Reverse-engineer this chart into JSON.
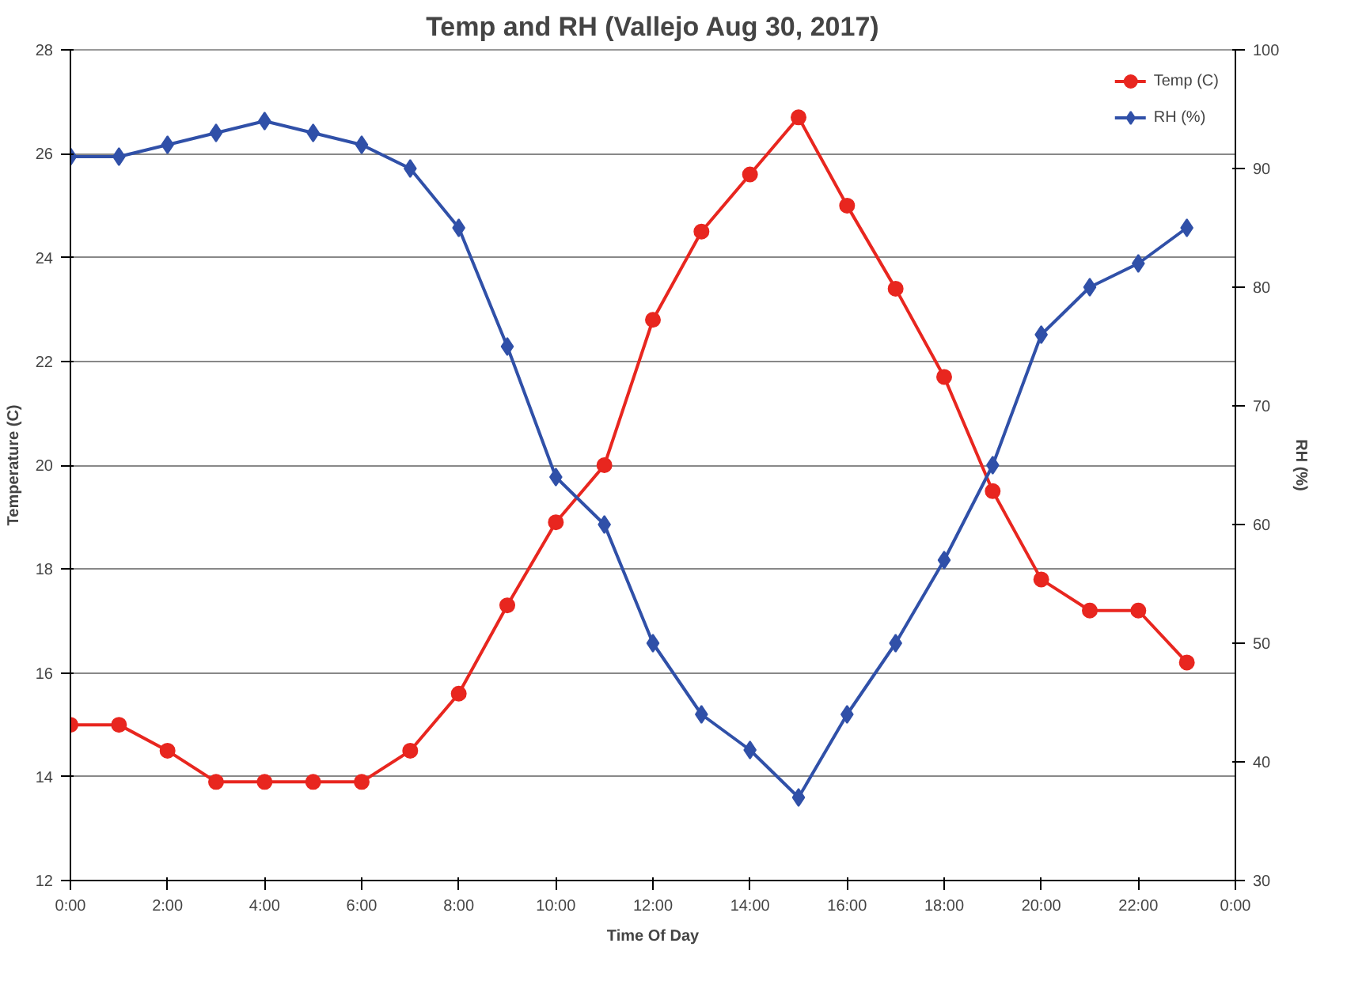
{
  "chart_data": {
    "type": "line",
    "title": "Temp and RH (Vallejo Aug 30, 2017)",
    "xlabel": "Time Of Day",
    "ylabel": "Temperature (C)",
    "y2label": "RH (%)",
    "x": [
      0,
      1,
      2,
      3,
      4,
      5,
      6,
      7,
      8,
      9,
      10,
      11,
      12,
      13,
      14,
      15,
      16,
      17,
      18,
      19,
      20,
      21,
      22,
      23
    ],
    "series": [
      {
        "name": "Temp (C)",
        "color": "#e8261f",
        "marker": "circle",
        "values": [
          15.0,
          15.0,
          14.5,
          13.9,
          13.9,
          13.9,
          13.9,
          14.5,
          15.6,
          17.3,
          18.9,
          20.0,
          22.8,
          24.5,
          25.6,
          26.7,
          25.0,
          23.4,
          21.7,
          19.5,
          17.8,
          17.2,
          17.2,
          16.2
        ]
      },
      {
        "name": "RH (%)",
        "color": "#3050a8",
        "marker": "diamond",
        "axis": "y2",
        "values": [
          91,
          91,
          92,
          93,
          94,
          93,
          92,
          90,
          85,
          75,
          64,
          60,
          50,
          44,
          41,
          37,
          44,
          50,
          57,
          65,
          76,
          80,
          82,
          85
        ]
      }
    ],
    "xlim": [
      0,
      24
    ],
    "xticks": [
      {
        "value": 0,
        "label": "0:00"
      },
      {
        "value": 2,
        "label": "2:00"
      },
      {
        "value": 4,
        "label": "4:00"
      },
      {
        "value": 6,
        "label": "6:00"
      },
      {
        "value": 8,
        "label": "8:00"
      },
      {
        "value": 10,
        "label": "10:00"
      },
      {
        "value": 12,
        "label": "12:00"
      },
      {
        "value": 14,
        "label": "14:00"
      },
      {
        "value": 16,
        "label": "16:00"
      },
      {
        "value": 18,
        "label": "18:00"
      },
      {
        "value": 20,
        "label": "20:00"
      },
      {
        "value": 22,
        "label": "22:00"
      },
      {
        "value": 24,
        "label": "0:00"
      }
    ],
    "ylim": [
      12,
      28
    ],
    "yticks": [
      12,
      14,
      16,
      18,
      20,
      22,
      24,
      26,
      28
    ],
    "y2lim": [
      30,
      100
    ],
    "y2ticks": [
      30,
      40,
      50,
      60,
      70,
      80,
      90,
      100
    ],
    "grid": "y",
    "legend": "top right",
    "line_style": "solid"
  }
}
